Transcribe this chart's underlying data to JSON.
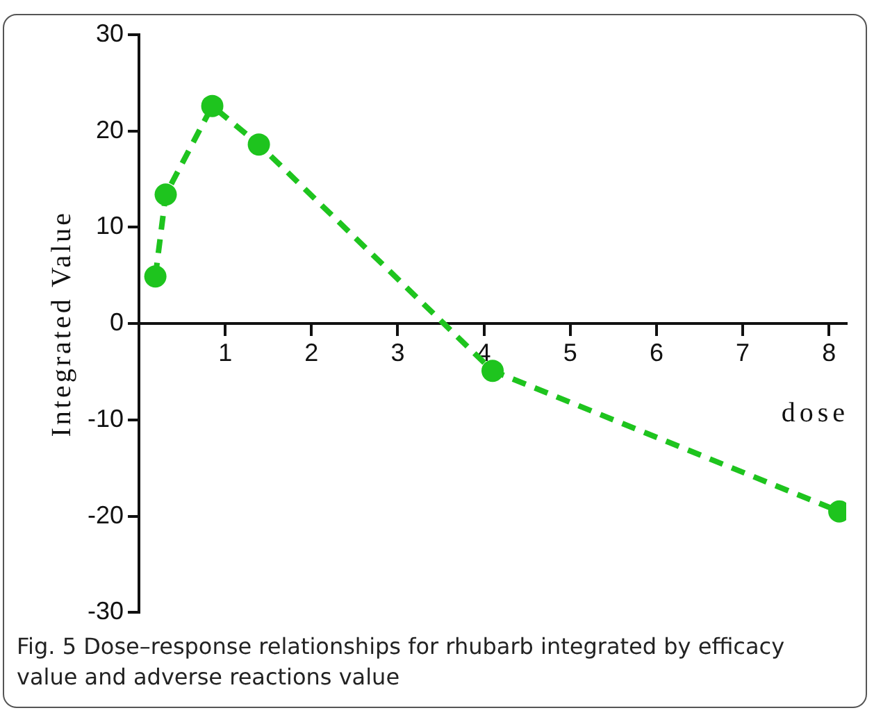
{
  "chart_data": {
    "type": "line",
    "xlabel": "dose",
    "ylabel": "Integrated Value",
    "x": [
      0.19,
      0.31,
      0.85,
      1.39,
      4.1,
      8.12
    ],
    "series": [
      {
        "color": "#1ec41e",
        "values": [
          4.9,
          13.4,
          22.6,
          18.6,
          -4.9,
          -19.5
        ]
      }
    ],
    "xlim": [
      0,
      8.2
    ],
    "xticks": [
      1,
      2,
      3,
      4,
      5,
      6,
      7,
      8
    ],
    "ylim": [
      -30,
      30
    ],
    "yticks": [
      -30,
      -20,
      -10,
      0,
      10,
      20,
      30
    ],
    "grid": false,
    "legend": false,
    "marker": "circle",
    "line_style": "dashed",
    "annotations": [
      "Fig. 5 Dose–response relationships for rhubarb integrated by efficacy value and adverse reactions value"
    ]
  }
}
